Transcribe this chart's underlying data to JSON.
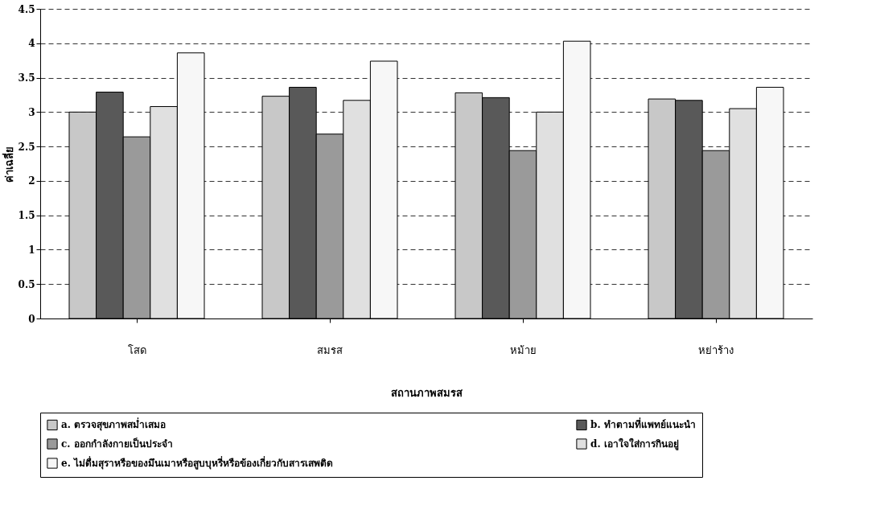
{
  "chart_data": {
    "type": "bar",
    "xlabel": "สถานภาพสมรส",
    "ylabel": "ค่าเฉลี่ย",
    "categories": [
      "โสด",
      "สมรส",
      "หม้าย",
      "หย่าร้าง"
    ],
    "series": [
      {
        "name": "a. ตรวจสุขภาพสม่ำเสมอ",
        "color": "#c8c8c8",
        "values": [
          3.0,
          3.23,
          3.28,
          3.19
        ]
      },
      {
        "name": "b. ทำตามที่แพทย์แนะนำ",
        "color": "#595959",
        "values": [
          3.29,
          3.36,
          3.21,
          3.17
        ]
      },
      {
        "name": "c. ออกกำลังกายเป็นประจำ",
        "color": "#9a9a9a",
        "values": [
          2.64,
          2.68,
          2.44,
          2.44
        ]
      },
      {
        "name": "d. เอาใจใส่การกินอยู่",
        "color": "#e0e0e0",
        "values": [
          3.08,
          3.17,
          3.0,
          3.05
        ]
      },
      {
        "name": "e. ไม่ดื่มสุราหรือของมึนเมาหรือสูบบุหรี่หรือข้องเกี่ยวกับสารเสพติด",
        "color": "#f7f7f7",
        "values": [
          3.86,
          3.74,
          4.03,
          3.36
        ]
      }
    ],
    "ylim": [
      0,
      4.5
    ],
    "yticks": [
      0,
      0.5,
      1,
      1.5,
      2,
      2.5,
      3,
      3.5,
      4,
      4.5
    ],
    "grid": "y",
    "legend": "bottom"
  }
}
